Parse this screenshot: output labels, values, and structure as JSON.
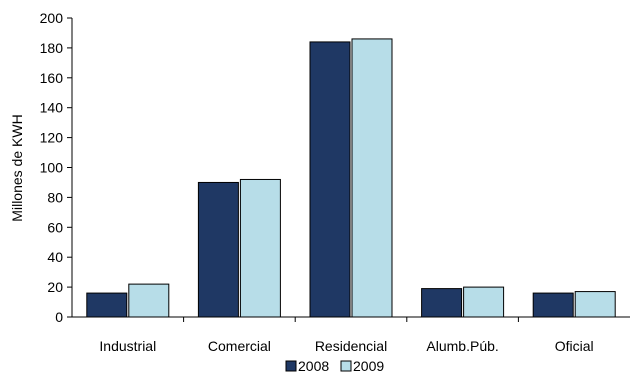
{
  "chart_data": {
    "type": "bar",
    "title": "",
    "xlabel": "",
    "ylabel": "Millones de KWH",
    "ylim": [
      0,
      200
    ],
    "yticks": [
      0,
      20,
      40,
      60,
      80,
      100,
      120,
      140,
      160,
      180,
      200
    ],
    "categories": [
      "Industrial",
      "Comercial",
      "Residencial",
      "Alumb.Púb.",
      "Oficial"
    ],
    "series": [
      {
        "name": "2008",
        "color": "#1f3864",
        "values": [
          16,
          90,
          184,
          19,
          16
        ]
      },
      {
        "name": "2009",
        "color": "#b7dde8",
        "values": [
          22,
          92,
          186,
          20,
          17
        ]
      }
    ],
    "grid": false,
    "legend": "bottom"
  }
}
